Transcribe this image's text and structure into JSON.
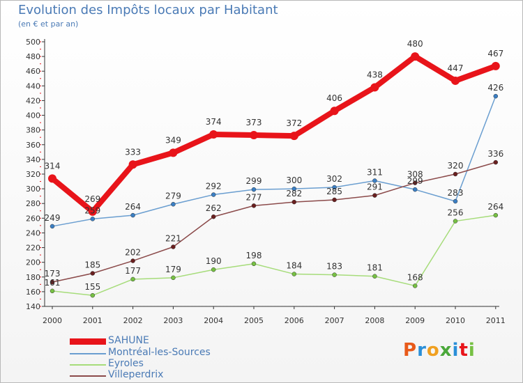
{
  "chart_data": {
    "type": "line",
    "title": "Evolution des Impôts locaux par Habitant",
    "subtitle": "(en € et par an)",
    "xlabel": "",
    "ylabel": "",
    "x": [
      "2000",
      "2001",
      "2002",
      "2003",
      "2004",
      "2005",
      "2006",
      "2007",
      "2008",
      "2009",
      "2010",
      "2011"
    ],
    "ylim": [
      140,
      500
    ],
    "yticks": [
      140,
      160,
      180,
      200,
      220,
      240,
      260,
      280,
      300,
      320,
      340,
      360,
      380,
      400,
      420,
      440,
      460,
      480,
      500
    ],
    "grid": false,
    "legend_position": "bottom-left",
    "series": [
      {
        "name": "Montréal-les-Sources",
        "color": "#6a9ed0",
        "point_color": "#3b7fc4",
        "values": [
          249,
          259,
          264,
          279,
          292,
          299,
          300,
          302,
          311,
          299,
          283,
          426
        ]
      },
      {
        "name": "Eyroles",
        "color": "#a6dc7a",
        "point_color": "#76c043",
        "values": [
          161,
          155,
          177,
          179,
          190,
          198,
          184,
          183,
          181,
          168,
          256,
          264
        ]
      },
      {
        "name": "Villeperdrix",
        "color": "#8b4a4a",
        "point_color": "#6a1f1f",
        "values": [
          173,
          185,
          202,
          221,
          262,
          277,
          282,
          285,
          291,
          308,
          320,
          336
        ]
      },
      {
        "name": "SAHUNE",
        "color": "#e8141a",
        "point_color": "#e8141a",
        "values": [
          314,
          269,
          333,
          349,
          374,
          373,
          372,
          406,
          438,
          480,
          447,
          467
        ]
      }
    ]
  },
  "legend": [
    {
      "label": "SAHUNE",
      "color": "#e8141a"
    },
    {
      "label": "Montréal-les-Sources",
      "color": "#6a9ed0"
    },
    {
      "label": "Eyroles",
      "color": "#a6dc7a"
    },
    {
      "label": "Villeperdrix",
      "color": "#8b4a4a"
    }
  ],
  "brand": {
    "letters": [
      "P",
      "r",
      "o",
      "x",
      "i",
      "t",
      "i"
    ],
    "colors": [
      "#e85a1a",
      "#2a8fd8",
      "#f0a020",
      "#4aa83a",
      "#2a8fd8",
      "#e8141a",
      "#76c043"
    ]
  }
}
